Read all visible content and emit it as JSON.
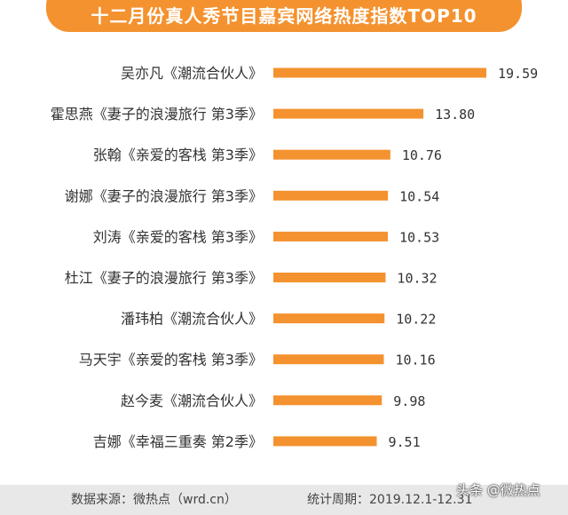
{
  "title": "十二月份真人秀节目嘉宾网络热度指数TOP10",
  "colors": {
    "accent": "#f4922f",
    "footer_bg": "#e8e8e8"
  },
  "chart_data": {
    "type": "bar",
    "orientation": "horizontal",
    "categories": [
      "吴亦凡《潮流合伙人》",
      "霍思燕《妻子的浪漫旅行 第3季》",
      "张翰《亲爱的客栈 第3季》",
      "谢娜《妻子的浪漫旅行 第3季》",
      "刘涛《亲爱的客栈 第3季》",
      "杜江《妻子的浪漫旅行 第3季》",
      "潘玮柏《潮流合伙人》",
      "马天宇《亲爱的客栈 第3季》",
      "赵今麦《潮流合伙人》",
      "吉娜《幸福三重奏 第2季》"
    ],
    "values": [
      19.59,
      13.8,
      10.76,
      10.54,
      10.53,
      10.32,
      10.22,
      10.16,
      9.98,
      9.51
    ],
    "value_labels": [
      "19.59",
      "13.80",
      "10.76",
      "10.54",
      "10.53",
      "10.32",
      "10.22",
      "10.16",
      "9.98",
      "9.51"
    ],
    "bar_color": "#f4922f",
    "grid": false
  },
  "footer": {
    "source": "数据来源：微热点（wrd.cn）",
    "period": "统计周期：2019.12.1-12.31"
  },
  "watermark": "头条 @微热点"
}
